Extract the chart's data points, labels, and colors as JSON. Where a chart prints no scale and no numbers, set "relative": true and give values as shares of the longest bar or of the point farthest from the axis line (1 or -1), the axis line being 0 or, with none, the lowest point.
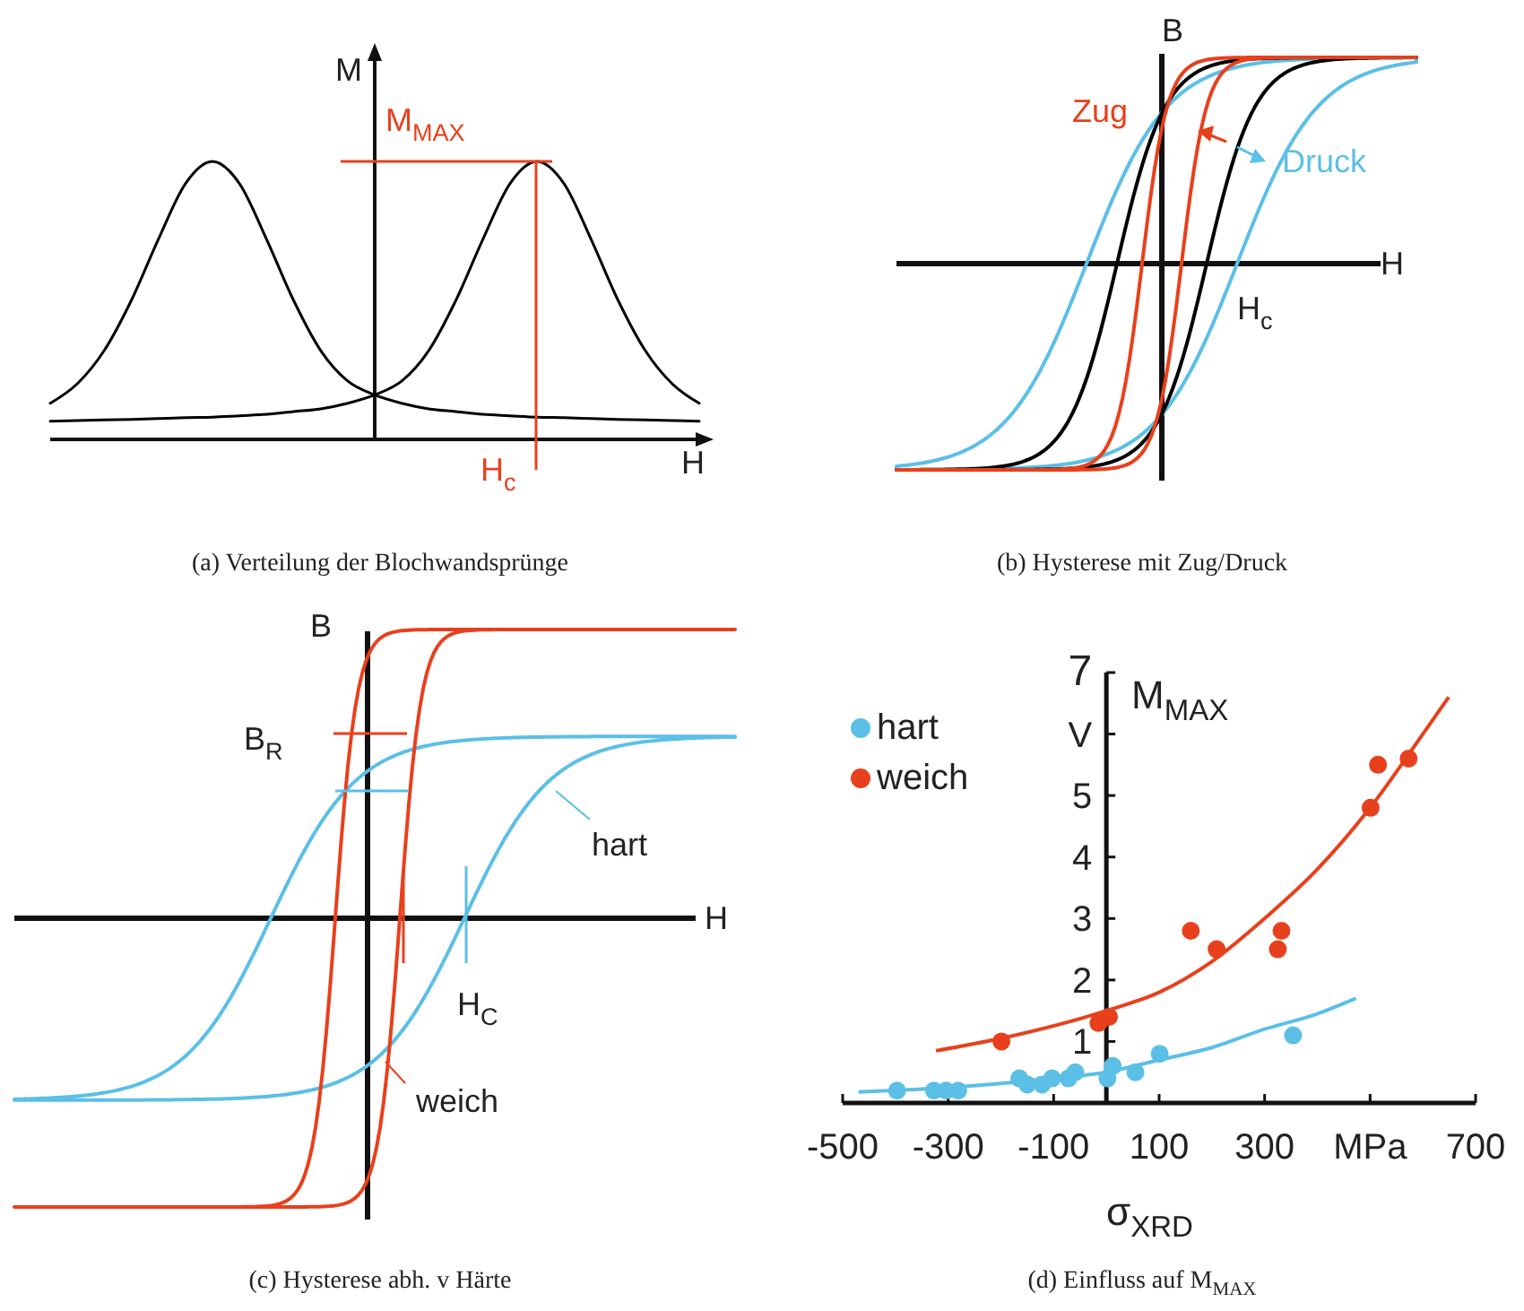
{
  "chart_data": [
    {
      "type": "line",
      "relative": true,
      "title": "(a) Verteilung der Blochwandsprünge",
      "xlabel": "H",
      "ylabel": "M",
      "categories": [
        null,
        null,
        null,
        null,
        null,
        null,
        null,
        null,
        null,
        null,
        null,
        null,
        null,
        null,
        null,
        null,
        null,
        null,
        null,
        null,
        null,
        null,
        null,
        null,
        null
      ],
      "series": [
        {
          "color": "#000000",
          "values": [
            0.13,
            0.2,
            0.32,
            0.5,
            0.72,
            0.92,
            1.0,
            0.92,
            0.72,
            0.5,
            0.32,
            0.21,
            0.16,
            0.13,
            0.11,
            0.1,
            0.09,
            0.085,
            0.08,
            0.078,
            0.075,
            0.072,
            0.07,
            0.068,
            0.065
          ]
        },
        {
          "color": "#000000",
          "values": [
            0.065,
            0.068,
            0.07,
            0.072,
            0.075,
            0.078,
            0.08,
            0.085,
            0.09,
            0.1,
            0.11,
            0.13,
            0.16,
            0.21,
            0.32,
            0.5,
            0.72,
            0.92,
            1.0,
            0.92,
            0.72,
            0.5,
            0.32,
            0.2,
            0.13
          ]
        }
      ],
      "ref_lines": [
        {
          "axis": "y",
          "value": 1,
          "label": "M$_{MAX}$",
          "color": "#e8401c"
        }
      ],
      "annotations": [
        "H$_{c}$"
      ]
    },
    {
      "type": "other",
      "title": "(b) Hysterese mit Zug/Druck",
      "xlabel": "H",
      "ylabel": "B",
      "annotations": [
        "Zug",
        "Druck",
        "H$_{c}$"
      ]
    },
    {
      "type": "other",
      "title": "(c) Hysterese abh. v Härte",
      "xlabel": "H",
      "ylabel": "B",
      "annotations": [
        "B$_{R}$",
        "H$_{C}$",
        "hart",
        "weich"
      ]
    },
    {
      "type": "scatter",
      "title": "(d) Einfluss auf M$_{MAX}$",
      "xlabel": "σ$_{XRD}$",
      "ylabel": "M$_{MAX}$",
      "xlim": [
        -500,
        700
      ],
      "ylim": [
        0,
        7
      ],
      "xticks": [
        -500,
        -300,
        -100,
        100,
        300,
        {
          "value": 500,
          "label": "MPa"
        },
        700
      ],
      "yticks": [
        1,
        2,
        3,
        4,
        5,
        {
          "value": 6,
          "label": "V"
        },
        7
      ],
      "legend": "top left",
      "marker": "circle",
      "series": [
        {
          "name": "hart",
          "color": "#5bbfe6",
          "x": [
            -397,
            -327,
            -304,
            -281,
            -165,
            -150,
            -122,
            -103,
            -72,
            -59,
            2,
            12,
            55,
            101,
            354
          ],
          "values": [
            0.2,
            0.2,
            0.2,
            0.2,
            0.4,
            0.3,
            0.3,
            0.4,
            0.4,
            0.5,
            0.4,
            0.6,
            0.5,
            0.8,
            1.1
          ]
        },
        {
          "name": "weich",
          "color": "#e8401c",
          "x": [
            -199,
            -15,
            5,
            160,
            209,
            332,
            325,
            501,
            515,
            573
          ],
          "values": [
            1.0,
            1.3,
            1.4,
            2.8,
            2.5,
            2.8,
            2.5,
            4.8,
            5.5,
            5.6
          ]
        },
        {
          "type": "line",
          "marker": "none",
          "color": "#5bbfe6",
          "x": [
            -470,
            -300,
            -100,
            0,
            100,
            200,
            300,
            400,
            473
          ],
          "values": [
            0.18,
            0.25,
            0.4,
            0.5,
            0.7,
            0.9,
            1.2,
            1.45,
            1.7
          ]
        },
        {
          "type": "line",
          "marker": "none",
          "color": "#e8401c",
          "x": [
            -323,
            -200,
            0,
            100,
            200,
            300,
            400,
            500,
            600,
            649
          ],
          "values": [
            0.85,
            1.05,
            1.5,
            1.8,
            2.3,
            3.0,
            3.8,
            4.8,
            6.0,
            6.6
          ]
        }
      ]
    }
  ]
}
